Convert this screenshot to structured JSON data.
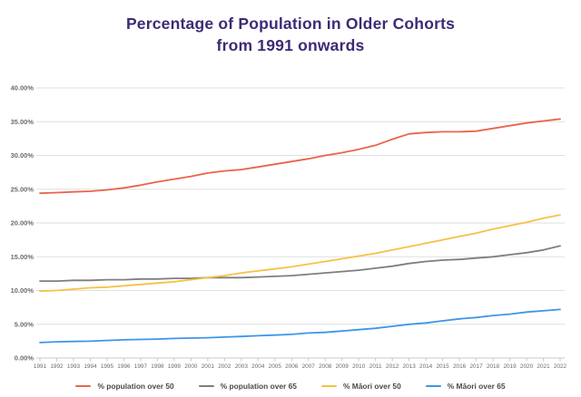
{
  "chart": {
    "title_line1": "Percentage of Population in Older Cohorts",
    "title_line2": "from 1991 onwards",
    "title_color": "#3E2A75",
    "background_color": "#FFFFFF",
    "gridline_color": "#DFDFDF",
    "axis_line_color": "#C9C9C9",
    "tick_text_color": "#6B6B6B"
  },
  "chart_data": {
    "type": "line",
    "title": "Percentage of Population in Older Cohorts from 1991 onwards",
    "xlabel": "",
    "ylabel": "",
    "x": [
      1991,
      1992,
      1993,
      1994,
      1995,
      1996,
      1997,
      1998,
      1999,
      2000,
      2001,
      2002,
      2003,
      2004,
      2005,
      2006,
      2007,
      2008,
      2009,
      2010,
      2011,
      2012,
      2013,
      2014,
      2015,
      2016,
      2017,
      2018,
      2019,
      2020,
      2021,
      2022
    ],
    "series": [
      {
        "name": "% population over 50",
        "color": "#E9644A",
        "values": [
          24.4,
          24.5,
          24.6,
          24.7,
          24.9,
          25.2,
          25.6,
          26.1,
          26.5,
          26.9,
          27.4,
          27.7,
          27.9,
          28.3,
          28.7,
          29.1,
          29.5,
          30.0,
          30.4,
          30.9,
          31.5,
          32.4,
          33.2,
          33.4,
          33.5,
          33.5,
          33.6,
          34.0,
          34.4,
          34.8,
          35.1,
          35.4
        ]
      },
      {
        "name": "% population over 65",
        "color": "#7E7E7E",
        "values": [
          11.4,
          11.4,
          11.5,
          11.5,
          11.6,
          11.6,
          11.7,
          11.7,
          11.8,
          11.8,
          11.9,
          11.9,
          11.9,
          12.0,
          12.1,
          12.2,
          12.4,
          12.6,
          12.8,
          13.0,
          13.3,
          13.6,
          14.0,
          14.3,
          14.5,
          14.6,
          14.8,
          15.0,
          15.3,
          15.6,
          16.0,
          16.6
        ]
      },
      {
        "name": "% Māori over 50",
        "color": "#F6C244",
        "values": [
          9.9,
          10.0,
          10.2,
          10.4,
          10.5,
          10.7,
          10.9,
          11.1,
          11.3,
          11.6,
          11.9,
          12.2,
          12.6,
          12.9,
          13.2,
          13.5,
          13.9,
          14.3,
          14.7,
          15.1,
          15.5,
          16.0,
          16.5,
          17.0,
          17.5,
          18.0,
          18.5,
          19.1,
          19.6,
          20.1,
          20.7,
          21.2
        ]
      },
      {
        "name": "% Māori over 65",
        "color": "#3D96E8",
        "values": [
          2.3,
          2.4,
          2.45,
          2.5,
          2.6,
          2.7,
          2.75,
          2.8,
          2.9,
          2.95,
          3.0,
          3.1,
          3.2,
          3.3,
          3.4,
          3.5,
          3.7,
          3.8,
          4.0,
          4.2,
          4.4,
          4.7,
          5.0,
          5.2,
          5.5,
          5.8,
          6.0,
          6.3,
          6.5,
          6.8,
          7.0,
          7.2
        ]
      }
    ],
    "ylim": [
      0,
      40
    ],
    "y_tick_step": 5,
    "y_tick_labels": [
      "0.00%",
      "5.00%",
      "10.00%",
      "15.00%",
      "20.00%",
      "25.00%",
      "30.00%",
      "35.00%",
      "40.00%"
    ],
    "grid": "horizontal",
    "legend_position": "bottom"
  }
}
